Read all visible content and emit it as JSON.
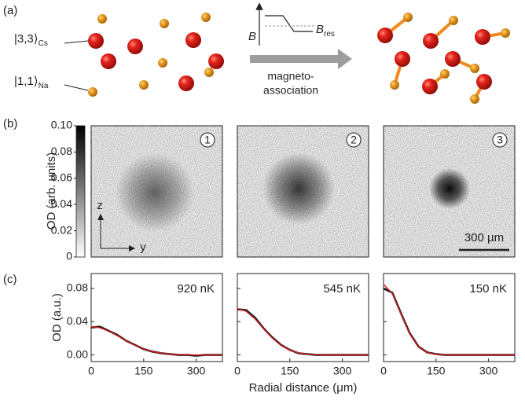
{
  "panel_a": {
    "label": "(a)",
    "cs_state": {
      "ket": "|3,3⟩",
      "sub": "Cs"
    },
    "na_state": {
      "ket": "|1,1⟩",
      "sub": "Na"
    },
    "field": "B",
    "resonance": {
      "main": "B",
      "sub": "res"
    },
    "process": [
      "magneto-",
      "association"
    ]
  },
  "panel_b": {
    "label": "(b)",
    "colorbar": {
      "label": "OD (arb. units)",
      "lim": [
        0,
        0.1
      ],
      "ticks": [
        0,
        0.02,
        0.04,
        0.06,
        0.08,
        {
          "value": 0.1,
          "label": "0.10"
        }
      ]
    },
    "image_markers": [
      "1",
      "2",
      "3"
    ],
    "axis_z": "z",
    "axis_y": "y",
    "scale_bar": "300 µm"
  },
  "panel_c": {
    "label": "(c)"
  },
  "chart_data": [
    {
      "type": "line",
      "ylabel": "OD (a.u.)",
      "annotation": "920 nK",
      "x": [
        0,
        25,
        50,
        75,
        100,
        125,
        150,
        175,
        200,
        225,
        250,
        275,
        300,
        325,
        350,
        375
      ],
      "xlim": [
        0,
        375
      ],
      "xticks": [
        0,
        150,
        300
      ],
      "ylim": [
        -0.008,
        0.098
      ],
      "yticks": [
        {
          "value": 0,
          "label": "0.00"
        },
        0.04,
        0.08
      ],
      "series": [
        {
          "color": "#231f20",
          "values": [
            0.033,
            0.034,
            0.029,
            0.024,
            0.017,
            0.012,
            0.007,
            0.004,
            0.002,
            0.001,
            0.0,
            0.0,
            -0.001,
            0.0,
            0.0,
            0.0
          ]
        },
        {
          "color": "#e31e24",
          "values": [
            0.034,
            0.0326,
            0.0286,
            0.023,
            0.017,
            0.0115,
            0.0072,
            0.0041,
            0.0021,
            0.001,
            0.0004,
            0.0001,
            0,
            0,
            0,
            0
          ]
        }
      ]
    },
    {
      "type": "line",
      "xlabel": "Radial distance (μm)",
      "annotation": "545 nK",
      "x": [
        0,
        25,
        50,
        75,
        100,
        125,
        150,
        175,
        200,
        225,
        250,
        275,
        300,
        325,
        350,
        375
      ],
      "xlim": [
        0,
        375
      ],
      "xticks": [
        0,
        150,
        300
      ],
      "ylim": [
        -0.008,
        0.098
      ],
      "series": [
        {
          "color": "#231f20",
          "values": [
            0.055,
            0.054,
            0.045,
            0.032,
            0.021,
            0.012,
            0.006,
            0.002,
            0.001,
            0.0,
            0.0,
            0.0,
            0.0,
            0.0,
            0.0,
            0.0
          ]
        },
        {
          "color": "#e31e24",
          "values": [
            0.056,
            0.0525,
            0.0434,
            0.0315,
            0.0202,
            0.0114,
            0.0056,
            0.0025,
            0.0009,
            0.0003,
            0,
            0,
            0,
            0,
            0,
            0
          ]
        }
      ]
    },
    {
      "type": "line",
      "annotation": "150 nK",
      "x": [
        0,
        25,
        50,
        75,
        100,
        125,
        150,
        175,
        200,
        225,
        250,
        275,
        300,
        325,
        350,
        375
      ],
      "xlim": [
        0,
        375
      ],
      "xticks": [
        0,
        150,
        300
      ],
      "ylim": [
        -0.008,
        0.098
      ],
      "series": [
        {
          "color": "#231f20",
          "values": [
            0.08,
            0.075,
            0.05,
            0.026,
            0.01,
            0.003,
            0.001,
            0.0,
            0.0,
            0.0,
            0.0,
            0.0,
            0.0,
            0.0,
            0.0,
            0.0
          ]
        },
        {
          "color": "#e31e24",
          "values": [
            0.085,
            0.0742,
            0.0494,
            0.0251,
            0.0097,
            0.0029,
            0.0006,
            0,
            0,
            0,
            0,
            0,
            0,
            0,
            0,
            0
          ]
        }
      ]
    }
  ]
}
